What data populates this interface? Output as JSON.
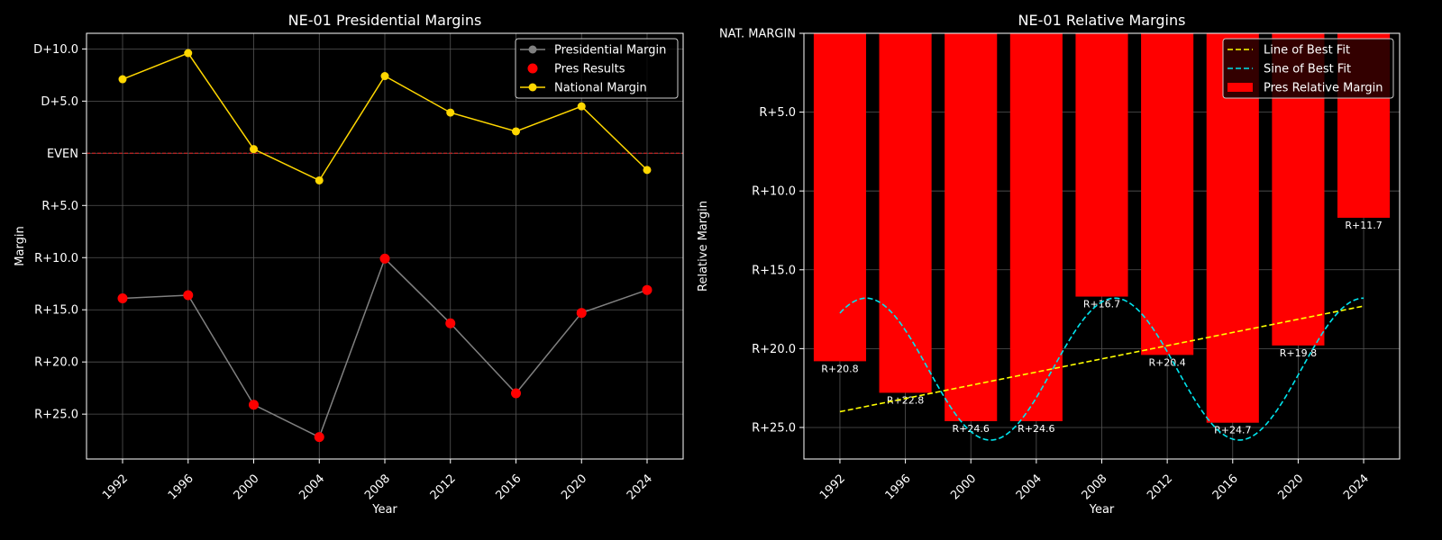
{
  "colors": {
    "background": "#000000",
    "text": "#ffffff",
    "grid": "#555555",
    "pres_margin_line": "#808080",
    "pres_results": "#ff0000",
    "national_margin": "#ffd700",
    "even_line": "#b22222",
    "bars": "#ff0000",
    "best_fit_line": "#ffff00",
    "sine_fit": "#00e5ee"
  },
  "chart_data": [
    {
      "type": "line",
      "title": "NE-01 Presidential Margins",
      "xlabel": "Year",
      "ylabel": "Margin",
      "x": [
        1992,
        1996,
        2000,
        2004,
        2008,
        2012,
        2016,
        2020,
        2024
      ],
      "xticks": [
        "1992",
        "1996",
        "2000",
        "2004",
        "2008",
        "2012",
        "2016",
        "2020",
        "2024"
      ],
      "ylim": [
        -29.3,
        10.0
      ],
      "yticks": [
        {
          "value": 10,
          "label": "D+10.0"
        },
        {
          "value": 5,
          "label": "D+5.0"
        },
        {
          "value": 0,
          "label": "EVEN"
        },
        {
          "value": -5,
          "label": "R+5.0"
        },
        {
          "value": -10,
          "label": "R+10.0"
        },
        {
          "value": -15,
          "label": "R+15.0"
        },
        {
          "value": -20,
          "label": "R+20.0"
        },
        {
          "value": -25,
          "label": "R+25.0"
        }
      ],
      "grid": true,
      "legend_position": "top-right",
      "legend": [
        "Presidential Margin",
        "Pres Results",
        "National Margin"
      ],
      "series": [
        {
          "name": "Presidential Margin",
          "values": [
            -13.9,
            -13.6,
            -24.1,
            -27.2,
            -10.1,
            -16.3,
            -23.0,
            -15.3,
            -13.1
          ]
        },
        {
          "name": "National Margin",
          "values": [
            7.1,
            9.6,
            0.4,
            -2.6,
            7.4,
            3.9,
            2.1,
            4.5,
            -1.6
          ]
        }
      ],
      "reference_line": {
        "value": 0,
        "style": "dashed"
      }
    },
    {
      "type": "bar",
      "title": "NE-01 Relative Margins",
      "xlabel": "Year",
      "ylabel": "Relative Margin",
      "x": [
        1992,
        1996,
        2000,
        2004,
        2008,
        2012,
        2016,
        2020,
        2024
      ],
      "xticks": [
        "1992",
        "1996",
        "2000",
        "2004",
        "2008",
        "2012",
        "2016",
        "2020",
        "2024"
      ],
      "ylim": [
        0,
        27.0
      ],
      "yticks": [
        {
          "value": 0,
          "label": "NAT. MARGIN"
        },
        {
          "value": 5,
          "label": "R+5.0"
        },
        {
          "value": 10,
          "label": "R+10.0"
        },
        {
          "value": 15,
          "label": "R+15.0"
        },
        {
          "value": 20,
          "label": "R+20.0"
        },
        {
          "value": 25,
          "label": "R+25.0"
        }
      ],
      "grid": true,
      "legend_position": "top-right",
      "legend": [
        "Line of Best Fit",
        "Sine of Best Fit",
        "Pres Relative Margin"
      ],
      "values": [
        20.8,
        22.8,
        24.6,
        24.6,
        16.7,
        20.4,
        24.7,
        19.8,
        11.7
      ],
      "data_labels": [
        "R+20.8",
        "R+22.8",
        "R+24.6",
        "R+24.6",
        "R+16.7",
        "R+20.4",
        "R+24.7",
        "R+19.8",
        "R+11.7"
      ],
      "best_fit_line": {
        "x": [
          1992,
          2024
        ],
        "y": [
          24.0,
          17.3
        ]
      },
      "sine_fit": {
        "x_range": [
          1992,
          2024
        ],
        "center": 21.3,
        "amplitude": 4.5,
        "period": 15.2,
        "peak_at": 1993.6
      }
    }
  ]
}
